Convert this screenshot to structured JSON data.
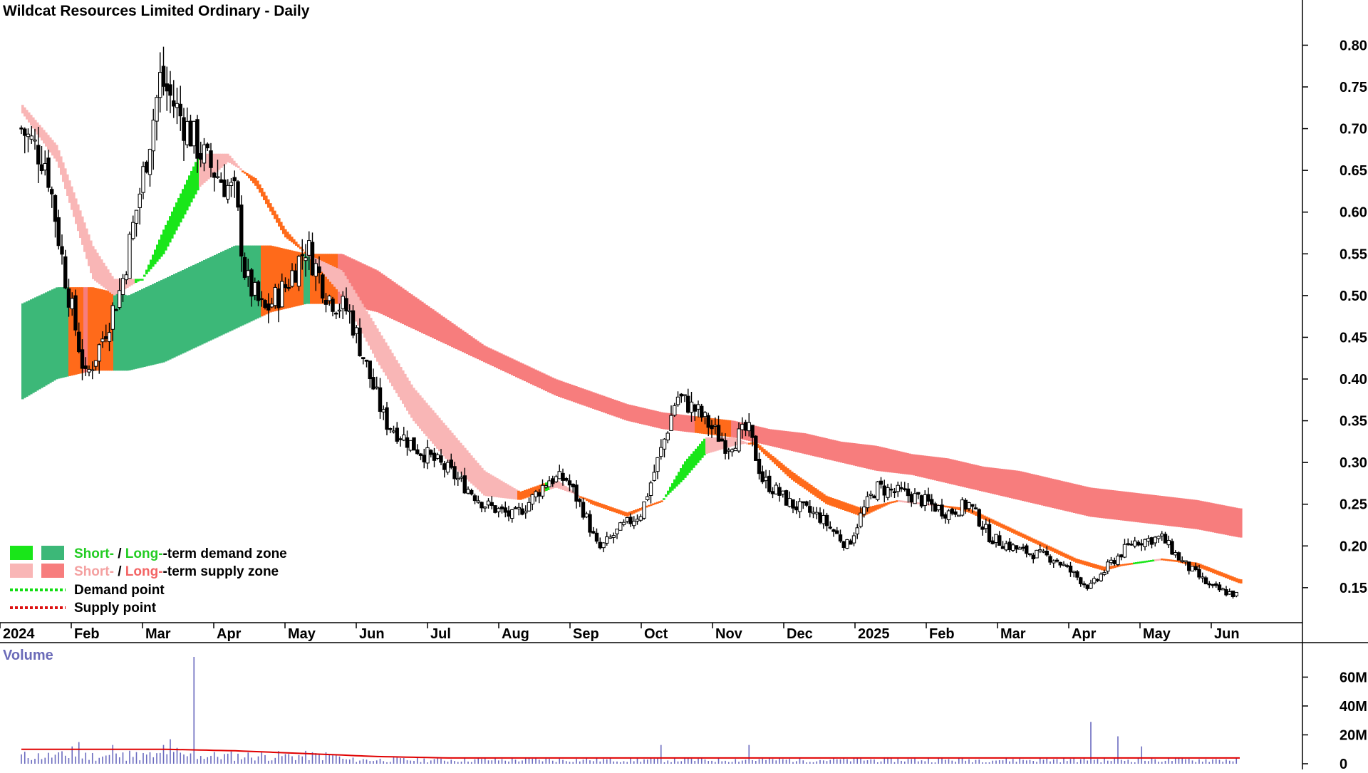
{
  "title": "Wildcat Resources Limited Ordinary - Daily",
  "volume_label": "Volume",
  "colors": {
    "short_demand": "#19e619",
    "long_demand": "#3cb878",
    "short_supply": "#f9b6b6",
    "long_supply": "#f77d7d",
    "mixed_zone": "#ff6a1a",
    "candle": "#000000",
    "volume_bar": "#6b6bbf",
    "volume_ma": "#e00000",
    "demand_point": "#11dd11",
    "supply_point": "#dd1111"
  },
  "legend": [
    {
      "short": "Short-",
      "sep": " / ",
      "long": "Long-",
      "rest": "-term demand zone",
      "kind": "demand"
    },
    {
      "short": "Short-",
      "sep": " / ",
      "long": "Long-",
      "rest": "-term supply zone",
      "kind": "supply"
    },
    {
      "label": "Demand point",
      "kind": "demand-point"
    },
    {
      "label": "Supply point",
      "kind": "supply-point"
    }
  ],
  "chart_data": [
    {
      "type": "candlestick",
      "title": "Wildcat Resources Limited Ordinary - Daily",
      "x_labels": [
        "2024",
        "Feb",
        "Mar",
        "Apr",
        "May",
        "Jun",
        "Jul",
        "Aug",
        "Sep",
        "Oct",
        "Nov",
        "Dec",
        "2025",
        "Feb",
        "Mar",
        "Apr",
        "May",
        "Jun"
      ],
      "y_ticks": [
        "0.80",
        "0.75",
        "0.70",
        "0.65",
        "0.60",
        "0.55",
        "0.50",
        "0.45",
        "0.40",
        "0.35",
        "0.30",
        "0.25",
        "0.20",
        "0.15"
      ],
      "ylim": [
        0.12,
        0.82
      ],
      "price_path": [
        {
          "m": 0.0,
          "c": 0.7
        },
        {
          "m": 0.35,
          "c": 0.66
        },
        {
          "m": 0.6,
          "c": 0.53
        },
        {
          "m": 0.9,
          "c": 0.4
        },
        {
          "m": 1.1,
          "c": 0.44
        },
        {
          "m": 1.4,
          "c": 0.51
        },
        {
          "m": 1.7,
          "c": 0.64
        },
        {
          "m": 1.95,
          "c": 0.76
        },
        {
          "m": 2.2,
          "c": 0.72
        },
        {
          "m": 2.6,
          "c": 0.66
        },
        {
          "m": 3.0,
          "c": 0.62
        },
        {
          "m": 3.15,
          "c": 0.52
        },
        {
          "m": 3.4,
          "c": 0.48
        },
        {
          "m": 3.7,
          "c": 0.51
        },
        {
          "m": 4.0,
          "c": 0.56
        },
        {
          "m": 4.3,
          "c": 0.5
        },
        {
          "m": 4.6,
          "c": 0.48
        },
        {
          "m": 4.9,
          "c": 0.4
        },
        {
          "m": 5.1,
          "c": 0.35
        },
        {
          "m": 5.5,
          "c": 0.32
        },
        {
          "m": 6.0,
          "c": 0.29
        },
        {
          "m": 6.5,
          "c": 0.25
        },
        {
          "m": 6.9,
          "c": 0.235
        },
        {
          "m": 7.1,
          "c": 0.25
        },
        {
          "m": 7.4,
          "c": 0.28
        },
        {
          "m": 7.65,
          "c": 0.28
        },
        {
          "m": 7.9,
          "c": 0.24
        },
        {
          "m": 8.1,
          "c": 0.195
        },
        {
          "m": 8.4,
          "c": 0.22
        },
        {
          "m": 8.7,
          "c": 0.24
        },
        {
          "m": 9.0,
          "c": 0.32
        },
        {
          "m": 9.2,
          "c": 0.38
        },
        {
          "m": 9.5,
          "c": 0.36
        },
        {
          "m": 9.9,
          "c": 0.32
        },
        {
          "m": 10.2,
          "c": 0.34
        },
        {
          "m": 10.4,
          "c": 0.28
        },
        {
          "m": 10.8,
          "c": 0.25
        },
        {
          "m": 11.2,
          "c": 0.235
        },
        {
          "m": 11.6,
          "c": 0.2
        },
        {
          "m": 11.8,
          "c": 0.24
        },
        {
          "m": 12.0,
          "c": 0.27
        },
        {
          "m": 12.5,
          "c": 0.26
        },
        {
          "m": 13.0,
          "c": 0.24
        },
        {
          "m": 13.3,
          "c": 0.25
        },
        {
          "m": 13.6,
          "c": 0.21
        },
        {
          "m": 14.0,
          "c": 0.195
        },
        {
          "m": 14.5,
          "c": 0.185
        },
        {
          "m": 15.0,
          "c": 0.15
        },
        {
          "m": 15.3,
          "c": 0.18
        },
        {
          "m": 15.6,
          "c": 0.205
        },
        {
          "m": 16.0,
          "c": 0.21
        },
        {
          "m": 16.3,
          "c": 0.18
        },
        {
          "m": 16.7,
          "c": 0.15
        },
        {
          "m": 17.1,
          "c": 0.14
        }
      ],
      "series": [
        {
          "name": "Short-term zone",
          "path": [
            {
              "m": 0.0,
              "top": 0.73,
              "bot": 0.72
            },
            {
              "m": 0.5,
              "top": 0.68,
              "bot": 0.66
            },
            {
              "m": 1.0,
              "top": 0.56,
              "bot": 0.52
            },
            {
              "m": 1.3,
              "top": 0.52,
              "bot": 0.5
            },
            {
              "m": 1.7,
              "top": 0.52,
              "bot": 0.52
            },
            {
              "m": 2.0,
              "top": 0.58,
              "bot": 0.55
            },
            {
              "m": 2.5,
              "top": 0.67,
              "bot": 0.63
            },
            {
              "m": 2.9,
              "top": 0.67,
              "bot": 0.66
            },
            {
              "m": 3.3,
              "top": 0.63,
              "bot": 0.64
            },
            {
              "m": 3.7,
              "top": 0.57,
              "bot": 0.58
            },
            {
              "m": 4.0,
              "top": 0.55,
              "bot": 0.55
            },
            {
              "m": 4.5,
              "top": 0.53,
              "bot": 0.5
            },
            {
              "m": 5.0,
              "top": 0.46,
              "bot": 0.42
            },
            {
              "m": 5.5,
              "top": 0.39,
              "bot": 0.35
            },
            {
              "m": 6.0,
              "top": 0.34,
              "bot": 0.3
            },
            {
              "m": 6.5,
              "top": 0.29,
              "bot": 0.26
            },
            {
              "m": 7.0,
              "top": 0.265,
              "bot": 0.255
            },
            {
              "m": 7.5,
              "top": 0.28,
              "bot": 0.27
            },
            {
              "m": 8.0,
              "top": 0.25,
              "bot": 0.255
            },
            {
              "m": 8.5,
              "top": 0.235,
              "bot": 0.24
            },
            {
              "m": 9.0,
              "top": 0.255,
              "bot": 0.255
            },
            {
              "m": 9.3,
              "top": 0.3,
              "bot": 0.28
            },
            {
              "m": 9.6,
              "top": 0.33,
              "bot": 0.31
            },
            {
              "m": 10.0,
              "top": 0.33,
              "bot": 0.32
            },
            {
              "m": 10.3,
              "top": 0.32,
              "bot": 0.325
            },
            {
              "m": 10.8,
              "top": 0.28,
              "bot": 0.29
            },
            {
              "m": 11.3,
              "top": 0.25,
              "bot": 0.26
            },
            {
              "m": 11.8,
              "top": 0.235,
              "bot": 0.245
            },
            {
              "m": 12.3,
              "top": 0.255,
              "bot": 0.255
            },
            {
              "m": 12.8,
              "top": 0.25,
              "bot": 0.25
            },
            {
              "m": 13.3,
              "top": 0.24,
              "bot": 0.245
            },
            {
              "m": 13.8,
              "top": 0.22,
              "bot": 0.225
            },
            {
              "m": 14.3,
              "top": 0.2,
              "bot": 0.205
            },
            {
              "m": 14.8,
              "top": 0.18,
              "bot": 0.185
            },
            {
              "m": 15.2,
              "top": 0.17,
              "bot": 0.175
            },
            {
              "m": 15.6,
              "top": 0.18,
              "bot": 0.18
            },
            {
              "m": 16.0,
              "top": 0.185,
              "bot": 0.185
            },
            {
              "m": 16.5,
              "top": 0.175,
              "bot": 0.18
            },
            {
              "m": 17.1,
              "top": 0.155,
              "bot": 0.16
            }
          ]
        },
        {
          "name": "Long-term zone",
          "path": [
            {
              "m": 0.0,
              "top": 0.49,
              "bot": 0.375
            },
            {
              "m": 0.5,
              "top": 0.51,
              "bot": 0.4
            },
            {
              "m": 1.0,
              "top": 0.51,
              "bot": 0.41
            },
            {
              "m": 1.5,
              "top": 0.5,
              "bot": 0.41
            },
            {
              "m": 2.0,
              "top": 0.52,
              "bot": 0.42
            },
            {
              "m": 2.5,
              "top": 0.54,
              "bot": 0.44
            },
            {
              "m": 3.0,
              "top": 0.56,
              "bot": 0.46
            },
            {
              "m": 3.5,
              "top": 0.56,
              "bot": 0.48
            },
            {
              "m": 4.0,
              "top": 0.55,
              "bot": 0.49
            },
            {
              "m": 4.5,
              "top": 0.55,
              "bot": 0.49
            },
            {
              "m": 5.0,
              "top": 0.53,
              "bot": 0.48
            },
            {
              "m": 5.5,
              "top": 0.5,
              "bot": 0.46
            },
            {
              "m": 6.0,
              "top": 0.47,
              "bot": 0.44
            },
            {
              "m": 6.5,
              "top": 0.44,
              "bot": 0.42
            },
            {
              "m": 7.0,
              "top": 0.42,
              "bot": 0.4
            },
            {
              "m": 7.5,
              "top": 0.4,
              "bot": 0.38
            },
            {
              "m": 8.0,
              "top": 0.385,
              "bot": 0.365
            },
            {
              "m": 8.5,
              "top": 0.37,
              "bot": 0.35
            },
            {
              "m": 9.0,
              "top": 0.36,
              "bot": 0.34
            },
            {
              "m": 9.5,
              "top": 0.355,
              "bot": 0.335
            },
            {
              "m": 10.0,
              "top": 0.35,
              "bot": 0.33
            },
            {
              "m": 10.5,
              "top": 0.34,
              "bot": 0.32
            },
            {
              "m": 11.0,
              "top": 0.335,
              "bot": 0.31
            },
            {
              "m": 11.5,
              "top": 0.325,
              "bot": 0.3
            },
            {
              "m": 12.0,
              "top": 0.32,
              "bot": 0.29
            },
            {
              "m": 12.5,
              "top": 0.31,
              "bot": 0.285
            },
            {
              "m": 13.0,
              "top": 0.305,
              "bot": 0.275
            },
            {
              "m": 13.5,
              "top": 0.295,
              "bot": 0.265
            },
            {
              "m": 14.0,
              "top": 0.29,
              "bot": 0.255
            },
            {
              "m": 14.5,
              "top": 0.28,
              "bot": 0.245
            },
            {
              "m": 15.0,
              "top": 0.27,
              "bot": 0.235
            },
            {
              "m": 15.5,
              "top": 0.265,
              "bot": 0.23
            },
            {
              "m": 16.0,
              "top": 0.26,
              "bot": 0.225
            },
            {
              "m": 16.5,
              "top": 0.255,
              "bot": 0.22
            },
            {
              "m": 17.1,
              "top": 0.245,
              "bot": 0.21
            }
          ]
        }
      ]
    },
    {
      "type": "bar",
      "title": "Volume",
      "y_ticks": [
        "60M",
        "40M",
        "20M",
        "0"
      ],
      "ylim": [
        0,
        75
      ],
      "unit": "M",
      "spikes": [
        {
          "m": 0.7,
          "v": 12
        },
        {
          "m": 0.8,
          "v": 15
        },
        {
          "m": 1.3,
          "v": 13
        },
        {
          "m": 1.5,
          "v": 9
        },
        {
          "m": 2.0,
          "v": 13
        },
        {
          "m": 2.1,
          "v": 17
        },
        {
          "m": 2.2,
          "v": 11
        },
        {
          "m": 2.4,
          "v": 74
        },
        {
          "m": 9.0,
          "v": 13
        },
        {
          "m": 10.2,
          "v": 13
        },
        {
          "m": 15.0,
          "v": 29
        },
        {
          "m": 15.4,
          "v": 19
        },
        {
          "m": 15.7,
          "v": 12
        }
      ],
      "moving_average": [
        {
          "m": 0.0,
          "v": 10
        },
        {
          "m": 2.0,
          "v": 10
        },
        {
          "m": 3.0,
          "v": 9
        },
        {
          "m": 4.0,
          "v": 7
        },
        {
          "m": 5.0,
          "v": 5
        },
        {
          "m": 6.0,
          "v": 4
        },
        {
          "m": 12.0,
          "v": 4
        },
        {
          "m": 17.1,
          "v": 4
        }
      ]
    }
  ]
}
